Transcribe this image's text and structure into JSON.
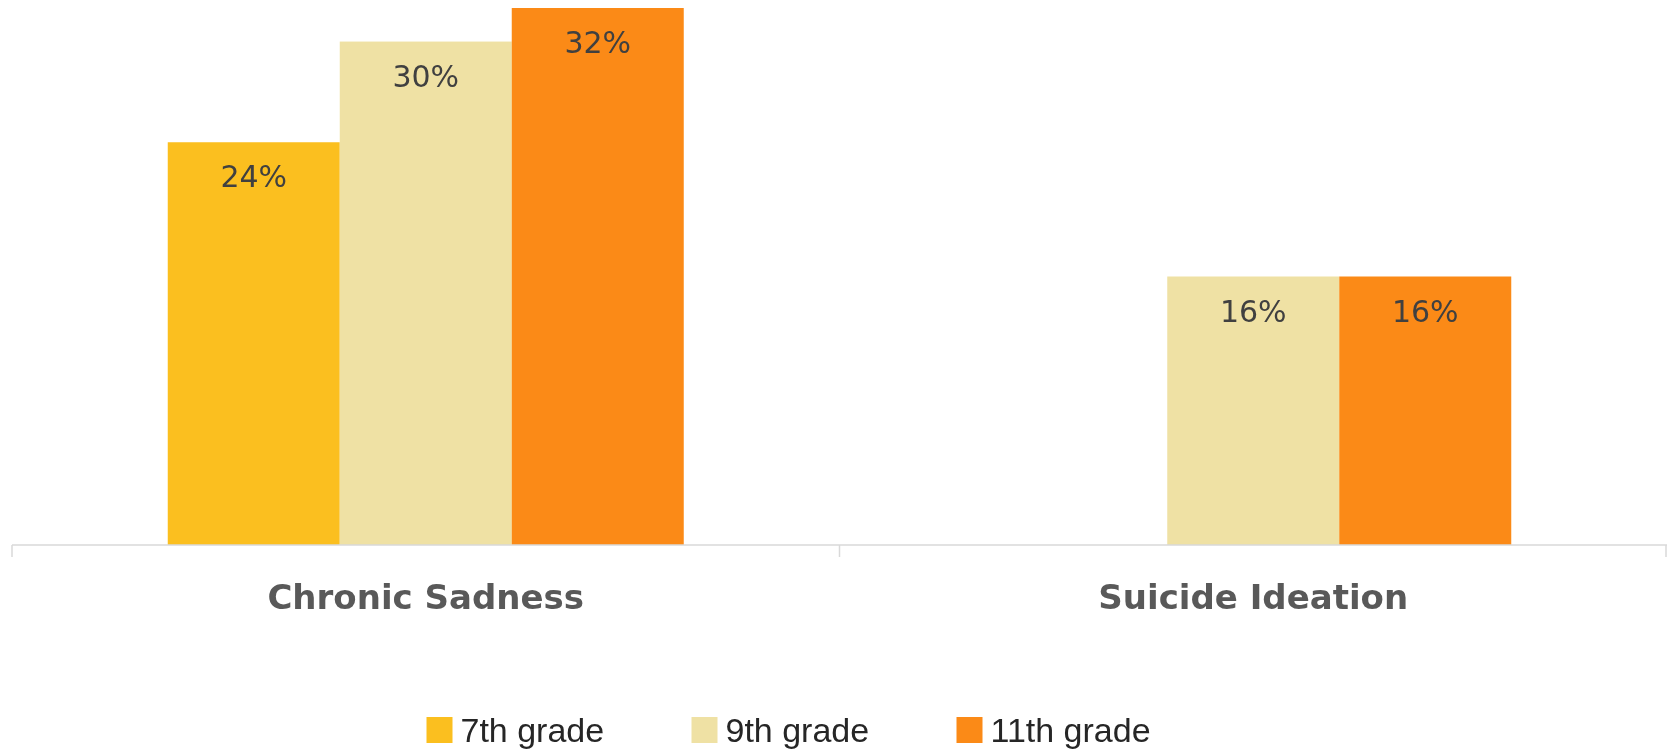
{
  "chart_data": {
    "type": "bar",
    "categories": [
      "Chronic Sadness",
      "Suicide Ideation"
    ],
    "ylim": [
      0,
      32
    ],
    "tick_labels": "x",
    "legend": "bottom",
    "series": [
      {
        "name": "7th grade",
        "color": "#fbbf1f",
        "values": [
          24,
          null
        ],
        "value_labels": [
          "24%",
          null
        ]
      },
      {
        "name": "9th grade",
        "color": "#efe1a4",
        "values": [
          30,
          16
        ],
        "value_labels": [
          "30%",
          "16%"
        ]
      },
      {
        "name": "11th grade",
        "color": "#fb8a17",
        "values": [
          32,
          16
        ],
        "value_labels": [
          "32%",
          "16%"
        ]
      }
    ]
  }
}
